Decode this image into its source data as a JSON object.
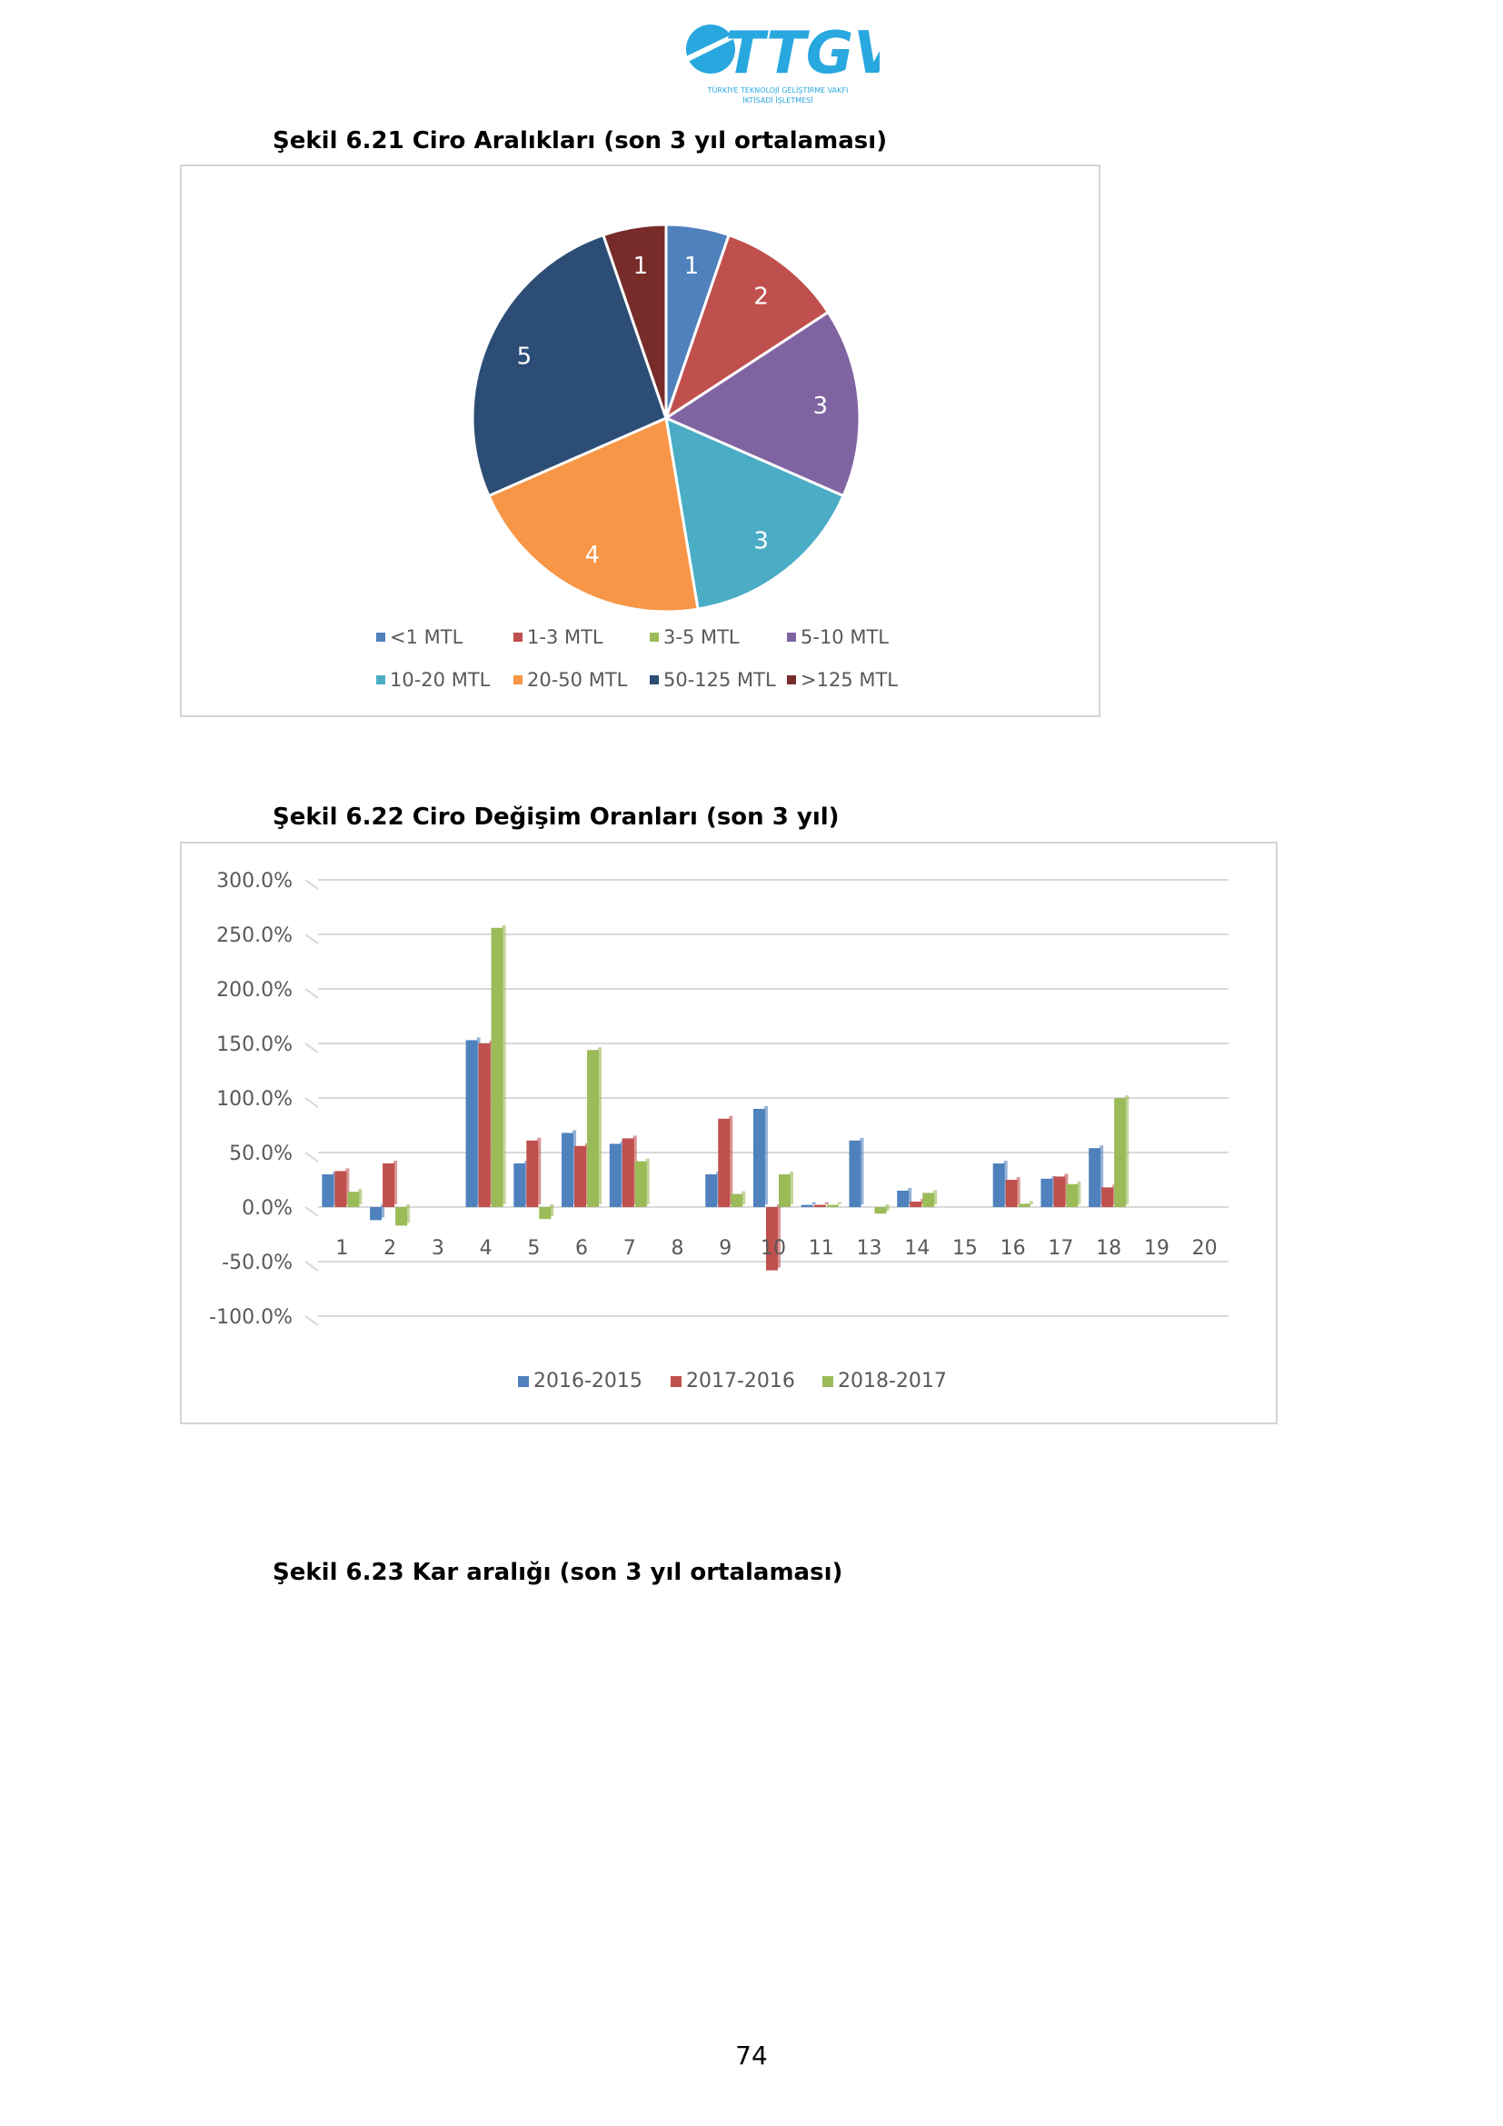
{
  "header": {
    "logo_text": "TTGV",
    "logo_subtitle_1": "TÜRKİYE TEKNOLOJİ GELİŞTİRME VAKFI",
    "logo_subtitle_2": "İKTİSADİ İŞLETMESİ",
    "brand_color": "#29a8df"
  },
  "figures": {
    "fig621_title": "Şekil 6.21 Ciro Aralıkları (son 3 yıl ortalaması)",
    "fig622_title": "Şekil 6.22 Ciro Değişim Oranları (son 3 yıl)",
    "fig623_title": "Şekil 6.23 Kar aralığı (son 3 yıl ortalaması)"
  },
  "page_number": "74",
  "chart_data": [
    {
      "type": "pie",
      "title": "",
      "legend_position": "bottom",
      "slices": [
        {
          "label": "<1 MTL",
          "value": 1,
          "color": "#4f81bd"
        },
        {
          "label": "1-3 MTL",
          "value": 2,
          "color": "#c0504d"
        },
        {
          "label": "3-5 MTL",
          "value": 0,
          "color": "#9bbb59"
        },
        {
          "label": "5-10 MTL",
          "value": 3,
          "color": "#8064a2"
        },
        {
          "label": "10-20 MTL",
          "value": 3,
          "color": "#4bacc6"
        },
        {
          "label": "20-50 MTL",
          "value": 4,
          "color": "#f79646"
        },
        {
          "label": "50-125 MTL",
          "value": 5,
          "color": "#2c4d75"
        },
        {
          "label": ">125 MTL",
          "value": 1,
          "color": "#772c2a"
        }
      ]
    },
    {
      "type": "bar",
      "title": "",
      "legend_position": "bottom",
      "grid": true,
      "ylim": [
        -100,
        300
      ],
      "yticks": [
        300,
        250,
        200,
        150,
        100,
        50,
        0,
        -50,
        -100
      ],
      "ytick_labels": [
        "300.0%",
        "250.0%",
        "200.0%",
        "150.0%",
        "100.0%",
        "50.0%",
        "0.0%",
        "-50.0%",
        "-100.0%"
      ],
      "categories": [
        "1",
        "2",
        "3",
        "4",
        "5",
        "6",
        "7",
        "8",
        "9",
        "10",
        "11",
        "13",
        "14",
        "15",
        "16",
        "17",
        "18",
        "19",
        "20"
      ],
      "series": [
        {
          "name": "2016-2015",
          "color": "#4f81bd",
          "values": [
            30,
            -12,
            0,
            153,
            40,
            68,
            58,
            0,
            30,
            90,
            2,
            61,
            15,
            0,
            40,
            26,
            54,
            0,
            0
          ]
        },
        {
          "name": "2017-2016",
          "color": "#c0504d",
          "values": [
            33,
            40,
            0,
            150,
            61,
            56,
            63,
            0,
            81,
            -58,
            2,
            0,
            5,
            0,
            25,
            28,
            18,
            0,
            0
          ]
        },
        {
          "name": "2018-2017",
          "color": "#9bbb59",
          "values": [
            14,
            -17,
            0,
            256,
            -11,
            144,
            42,
            0,
            12,
            30,
            2,
            -6,
            13,
            0,
            3,
            21,
            100,
            0,
            0
          ]
        }
      ]
    }
  ]
}
